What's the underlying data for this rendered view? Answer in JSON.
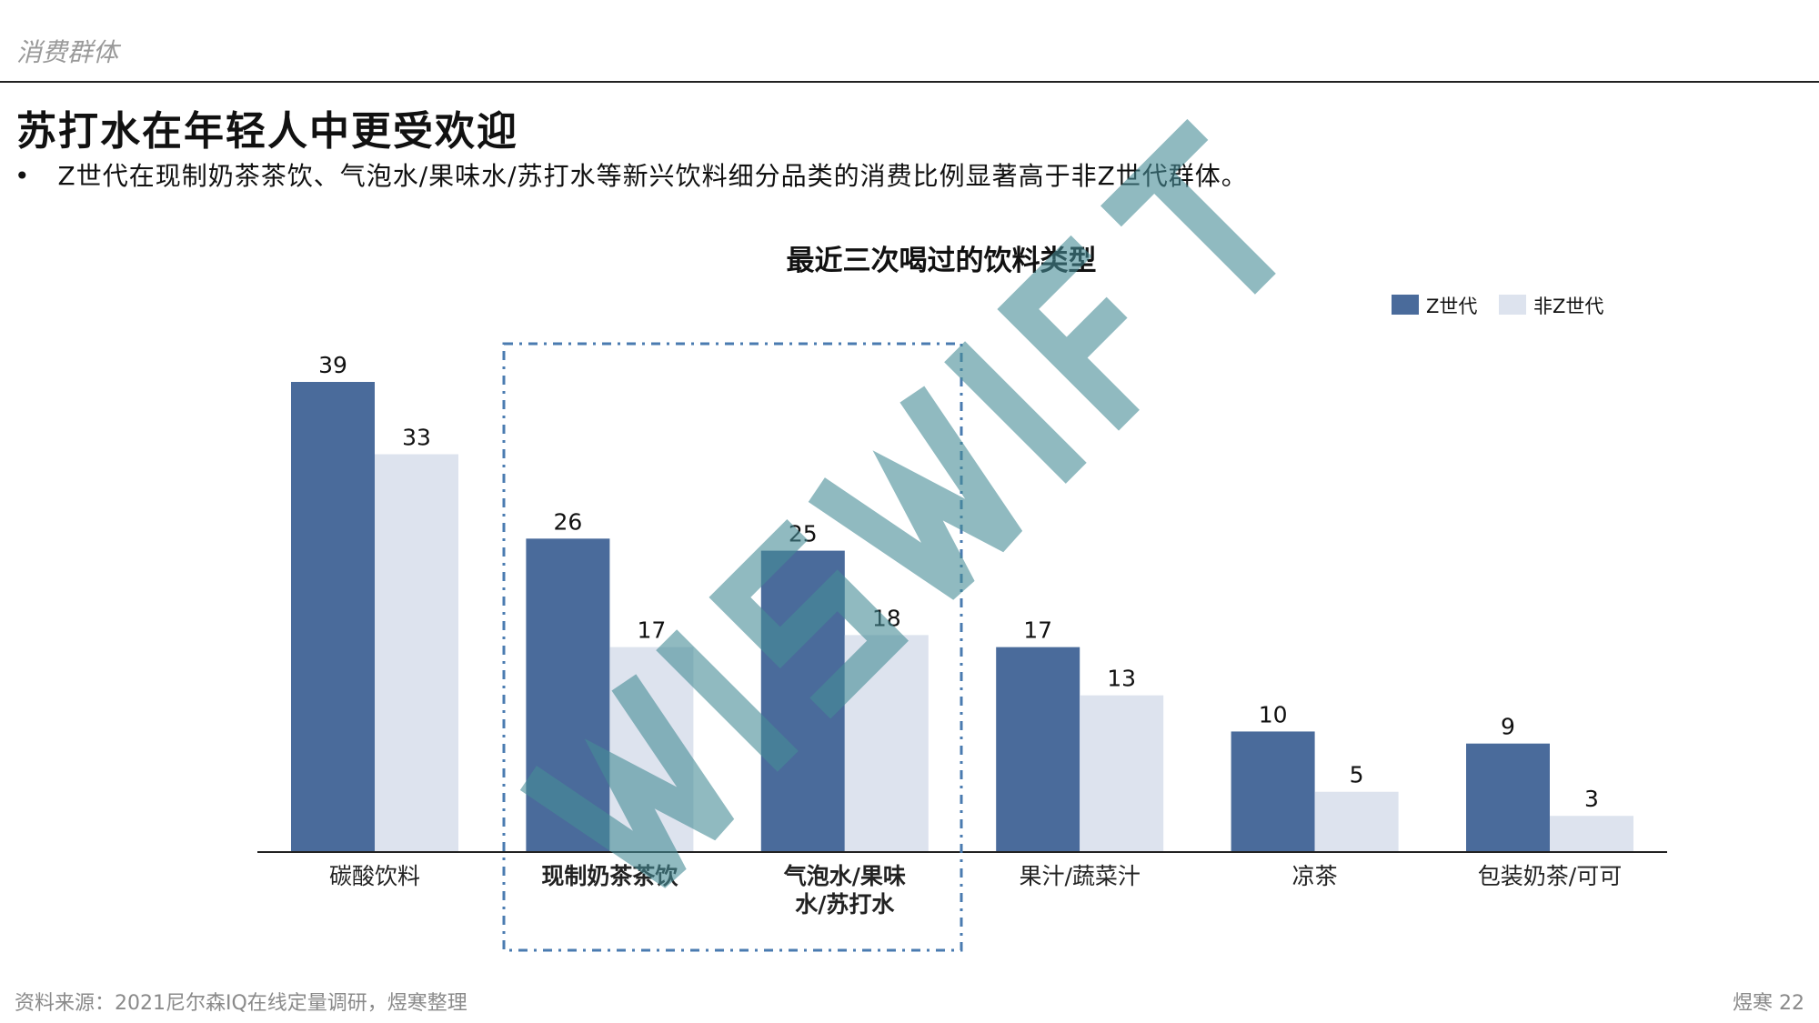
{
  "header": {
    "section": "消费群体"
  },
  "title": "苏打水在年轻人中更受欢迎",
  "bullet": "Z世代在现制奶茶茶饮、气泡水/果味水/苏打水等新兴饮料细分品类的消费比例显著高于非Z世代群体。",
  "footer": {
    "source": "资料来源：2021尼尔森IQ在线定量调研，煜寒整理",
    "page": "煜寒 22"
  },
  "watermark": "WISWIFT",
  "colors": {
    "z": "#4a6b9b",
    "nonz": "#dde3ee",
    "highlight_box": "#4a7bb0"
  },
  "chart_data": {
    "type": "bar",
    "title": "最近三次喝过的饮料类型",
    "categories": [
      "碳酸饮料",
      "现制奶茶茶饮",
      "气泡水/果味水/苏打水",
      "果汁/蔬菜汁",
      "凉茶",
      "包装奶茶/可可"
    ],
    "category_lines": [
      [
        "碳酸饮料"
      ],
      [
        "现制奶茶茶饮"
      ],
      [
        "气泡水/果味",
        "水/苏打水"
      ],
      [
        "果汁/蔬菜汁"
      ],
      [
        "凉茶"
      ],
      [
        "包装奶茶/可可"
      ]
    ],
    "bold_categories": [
      1,
      2
    ],
    "highlighted_categories": [
      1,
      2
    ],
    "series": [
      {
        "name": "Z世代",
        "values": [
          39,
          26,
          25,
          17,
          10,
          9
        ]
      },
      {
        "name": "非Z世代",
        "values": [
          33,
          17,
          18,
          13,
          5,
          3
        ]
      }
    ],
    "ylim": [
      0,
      39
    ],
    "legend": "top-right",
    "grid": false
  }
}
